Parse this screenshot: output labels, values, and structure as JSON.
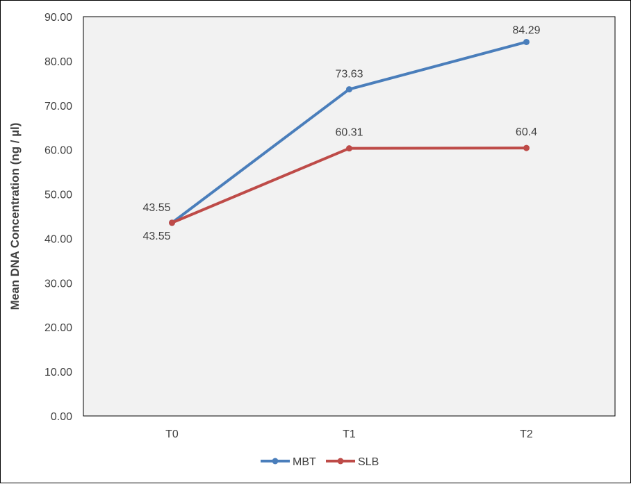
{
  "chart_data": {
    "type": "line",
    "categories": [
      "T0",
      "T1",
      "T2"
    ],
    "series": [
      {
        "name": "MBT",
        "values": [
          43.55,
          73.63,
          84.29
        ],
        "labels": [
          "43.55",
          "73.63",
          "84.29"
        ],
        "color": "#4a7ebb"
      },
      {
        "name": "SLB",
        "values": [
          43.55,
          60.31,
          60.4
        ],
        "labels": [
          "43.55",
          "60.31",
          "60.4"
        ],
        "color": "#be4b48"
      }
    ],
    "ylabel": "Mean DNA Concentration (ng / µl)",
    "ylim": [
      0,
      90
    ],
    "yticks": [
      "0.00",
      "10.00",
      "20.00",
      "30.00",
      "40.00",
      "50.00",
      "60.00",
      "70.00",
      "80.00",
      "90.00"
    ],
    "ytick_values": [
      0,
      10,
      20,
      30,
      40,
      50,
      60,
      70,
      80,
      90
    ],
    "plot_background": "#f2f2f2",
    "grid": false,
    "legend_position": "bottom"
  }
}
